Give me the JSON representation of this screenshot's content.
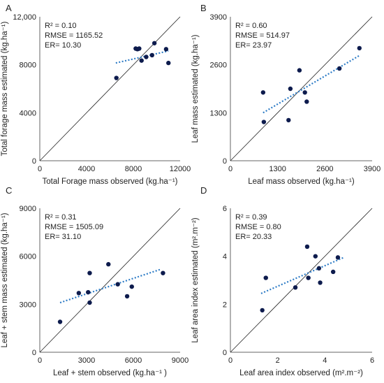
{
  "colors": {
    "points": "#0d1b4d",
    "trend": "#2e7cc6",
    "axis": "#666666",
    "identity": "#222222"
  },
  "chart_data": [
    {
      "letter": "A",
      "type": "scatter",
      "xlabel": "Total Forage mass observed (kg.ha⁻¹)",
      "ylabel": "Total forage mass estimated (kg.ha⁻¹)",
      "xlim": [
        0,
        12000
      ],
      "ylim": [
        0,
        12000
      ],
      "xticks": [
        0,
        4000,
        8000,
        12000
      ],
      "yticks": [
        0,
        4000,
        8000,
        12000
      ],
      "xtick_labels": [
        "0",
        "4000",
        "8000",
        "12000"
      ],
      "ytick_labels": [
        "0",
        "4000",
        "8000",
        "12,000"
      ],
      "stats": [
        "R² = 0.10",
        "RMSE = 1165.52",
        "ER= 10.30"
      ],
      "identity_line": true,
      "trendline": {
        "x": [
          6500,
          11000
        ],
        "y": [
          8150,
          9150
        ]
      },
      "points": [
        {
          "x": 6550,
          "y": 6900
        },
        {
          "x": 8200,
          "y": 9350
        },
        {
          "x": 8350,
          "y": 9300
        },
        {
          "x": 8500,
          "y": 9350
        },
        {
          "x": 8700,
          "y": 8350
        },
        {
          "x": 9100,
          "y": 8650
        },
        {
          "x": 9600,
          "y": 8800
        },
        {
          "x": 9800,
          "y": 9800
        },
        {
          "x": 10800,
          "y": 9300
        },
        {
          "x": 11000,
          "y": 8150
        }
      ]
    },
    {
      "letter": "B",
      "type": "scatter",
      "xlabel": "Leaf mass observed (kg.ha⁻¹)",
      "ylabel": "Leaf mass estimated (kg.ha⁻¹)",
      "xlim": [
        0,
        3900
      ],
      "ylim": [
        0,
        3900
      ],
      "xticks": [
        0,
        1300,
        2600,
        3900
      ],
      "yticks": [
        0,
        1300,
        2600,
        3900
      ],
      "xtick_labels": [
        "0",
        "1300",
        "2600",
        "3900"
      ],
      "ytick_labels": [
        "0",
        "1300",
        "2600",
        "3900"
      ],
      "stats": [
        "R² = 0.60",
        "RMSE = 514.97",
        "ER= 23.97"
      ],
      "identity_line": true,
      "trendline": {
        "x": [
          900,
          3550
        ],
        "y": [
          1300,
          2850
        ]
      },
      "points": [
        {
          "x": 900,
          "y": 1850
        },
        {
          "x": 920,
          "y": 1050
        },
        {
          "x": 1600,
          "y": 1100
        },
        {
          "x": 1650,
          "y": 1950
        },
        {
          "x": 1900,
          "y": 2450
        },
        {
          "x": 2050,
          "y": 1850
        },
        {
          "x": 2100,
          "y": 1600
        },
        {
          "x": 3000,
          "y": 2500
        },
        {
          "x": 3550,
          "y": 3050
        }
      ]
    },
    {
      "letter": "C",
      "type": "scatter",
      "xlabel": "Leaf + stem observed (kg.ha⁻¹ )",
      "ylabel": "Leaf + stem mass estimated (kg.ha⁻¹)",
      "xlim": [
        0,
        9000
      ],
      "ylim": [
        0,
        9000
      ],
      "xticks": [
        0,
        3000,
        6000,
        9000
      ],
      "yticks": [
        0,
        3000,
        6000,
        9000
      ],
      "xtick_labels": [
        "0",
        "3000",
        "6000",
        "9000"
      ],
      "ytick_labels": [
        "0",
        "3000",
        "6000",
        "9000"
      ],
      "stats": [
        "R² = 0.31",
        "RMSE = 1505.09",
        "ER= 31.10"
      ],
      "identity_line": true,
      "trendline": {
        "x": [
          1300,
          7800
        ],
        "y": [
          3100,
          5200
        ]
      },
      "points": [
        {
          "x": 1300,
          "y": 1900
        },
        {
          "x": 2500,
          "y": 3700
        },
        {
          "x": 3100,
          "y": 3750
        },
        {
          "x": 3200,
          "y": 4950
        },
        {
          "x": 3200,
          "y": 3100
        },
        {
          "x": 4400,
          "y": 5500
        },
        {
          "x": 5000,
          "y": 4250
        },
        {
          "x": 5600,
          "y": 3500
        },
        {
          "x": 5900,
          "y": 4100
        },
        {
          "x": 7900,
          "y": 4950
        }
      ]
    },
    {
      "letter": "D",
      "type": "scatter",
      "xlabel": "Leaf area index observed (m².m⁻²)",
      "ylabel": "Leaf area index estimated (m².m⁻²)",
      "xlim": [
        0,
        6
      ],
      "ylim": [
        0,
        6
      ],
      "xticks": [
        0,
        2,
        4,
        6
      ],
      "yticks": [
        0,
        2,
        4,
        6
      ],
      "xtick_labels": [
        "0",
        "2",
        "4",
        "6"
      ],
      "ytick_labels": [
        "0",
        "2",
        "4",
        "6"
      ],
      "stats": [
        "R² = 0.39",
        "RMSE = 0.80",
        "ER= 20.33"
      ],
      "identity_line": true,
      "trendline": {
        "x": [
          1.3,
          4.8
        ],
        "y": [
          2.45,
          3.95
        ]
      },
      "points": [
        {
          "x": 1.35,
          "y": 1.75
        },
        {
          "x": 1.5,
          "y": 3.1
        },
        {
          "x": 2.75,
          "y": 2.7
        },
        {
          "x": 3.25,
          "y": 4.4
        },
        {
          "x": 3.3,
          "y": 3.1
        },
        {
          "x": 3.6,
          "y": 4.0
        },
        {
          "x": 3.75,
          "y": 3.5
        },
        {
          "x": 3.8,
          "y": 2.9
        },
        {
          "x": 4.35,
          "y": 3.35
        },
        {
          "x": 4.55,
          "y": 3.95
        }
      ]
    }
  ]
}
